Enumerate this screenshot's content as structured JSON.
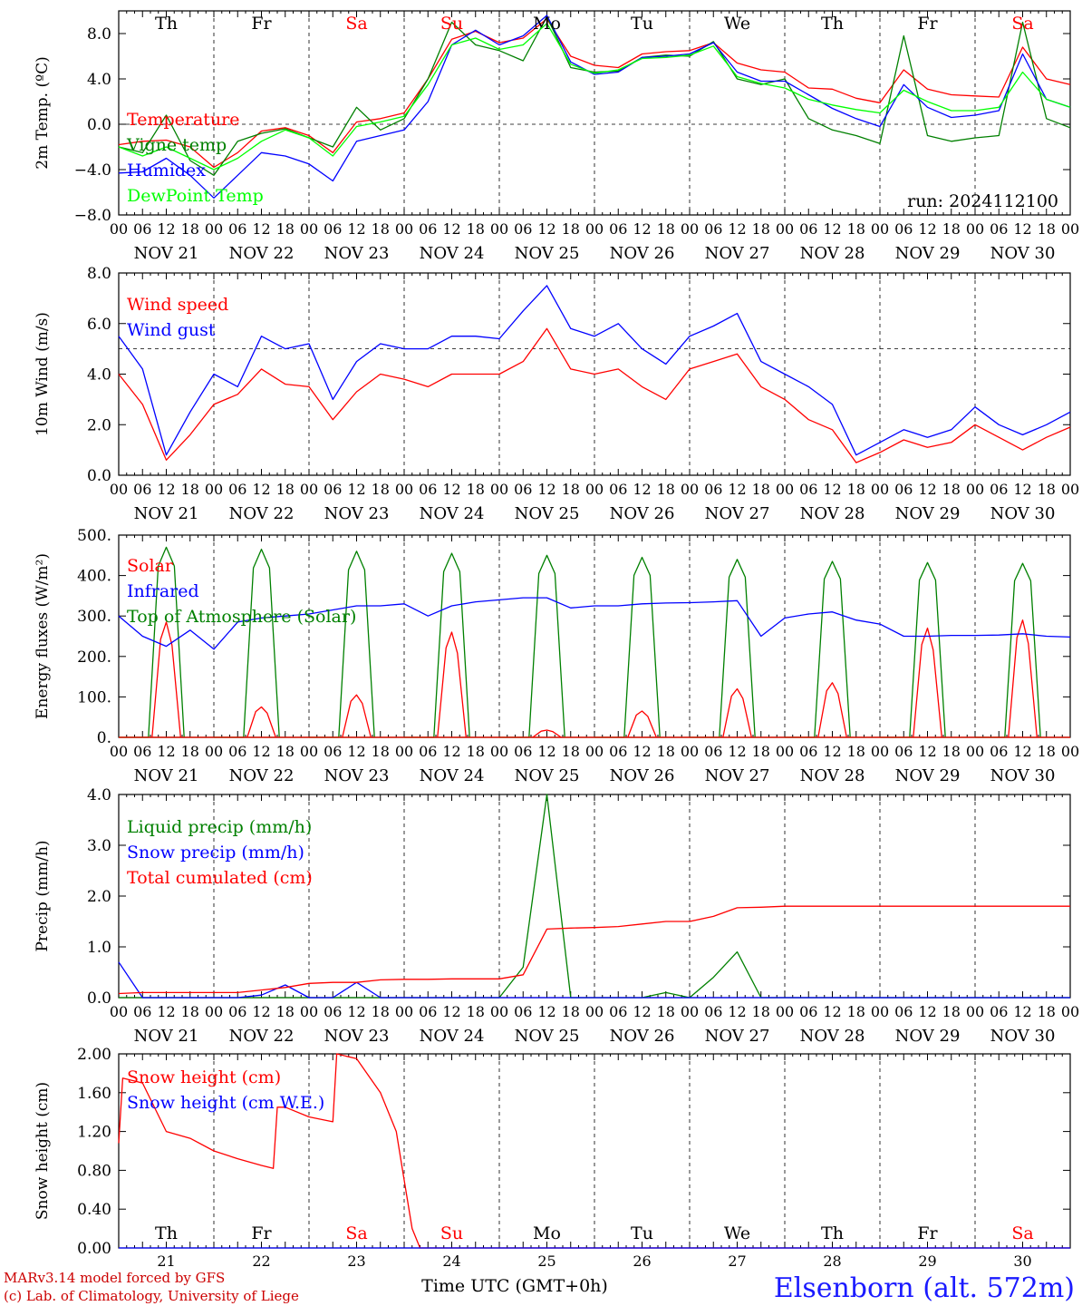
{
  "site_title": "Elsenborn (alt. 572m)",
  "run_label": "run: 2024112100",
  "x_axis_title": "Time UTC (GMT+0h)",
  "credit_lines": [
    "MARv3.14 model forced by GFS",
    "(c) Lab. of Climatology, University of Liege"
  ],
  "hour_ticks": [
    "00",
    "06",
    "12",
    "18"
  ],
  "date_labels": [
    "NOV 21",
    "NOV 22",
    "NOV 23",
    "NOV 24",
    "NOV 25",
    "NOV 26",
    "NOV 27",
    "NOV 28",
    "NOV 29",
    "NOV 30"
  ],
  "day_names": [
    "Th",
    "Fr",
    "Sa",
    "Su",
    "Mo",
    "Tu",
    "We",
    "Th",
    "Fr",
    "Sa"
  ],
  "day_numbers": [
    "21",
    "22",
    "23",
    "24",
    "25",
    "26",
    "27",
    "28",
    "29",
    "30"
  ],
  "weekend_color": "#ff0000",
  "weekend_indices": [
    2,
    3,
    9
  ],
  "chart_data": [
    {
      "type": "line",
      "ylabel": "2m Temp. (ºC)",
      "ylim": [
        -8,
        10
      ],
      "yticks": [
        "8.0",
        "4.0",
        "0.0",
        "−4.0",
        "−8.0"
      ],
      "ytick_values": [
        8,
        4,
        0,
        -4,
        -8
      ],
      "reference_line": 0,
      "x_hours": [
        0,
        6,
        12,
        18,
        24,
        30,
        36,
        42,
        48,
        54,
        60,
        66,
        72,
        78,
        84,
        90,
        96,
        102,
        108,
        114,
        120,
        126,
        132,
        138,
        144,
        150,
        156,
        162,
        168,
        174,
        180,
        186,
        192,
        198,
        204,
        210,
        216,
        222,
        228,
        234,
        240
      ],
      "series": [
        {
          "name": "Temperature",
          "color": "#ff0000",
          "values": [
            -1.8,
            -1.5,
            -1.4,
            -2.0,
            -3.8,
            -2.5,
            -0.6,
            -0.3,
            -1.0,
            -2.5,
            0.2,
            0.5,
            1.0,
            4.0,
            7.5,
            8.2,
            7.2,
            7.6,
            9.3,
            6.0,
            5.2,
            5.0,
            6.2,
            6.4,
            6.5,
            7.2,
            5.4,
            4.8,
            4.6,
            3.2,
            3.1,
            2.3,
            1.9,
            4.8,
            3.1,
            2.6,
            2.5,
            2.4,
            6.8,
            4.0,
            3.5
          ]
        },
        {
          "name": "Vigne temp",
          "color": "#008000",
          "values": [
            -2.0,
            -2.5,
            0.8,
            -3.2,
            -4.5,
            -1.5,
            -0.8,
            -0.4,
            -1.2,
            -2.0,
            1.5,
            -0.5,
            0.5,
            4.0,
            9.0,
            7.0,
            6.5,
            5.6,
            9.5,
            5.0,
            4.6,
            4.7,
            5.9,
            6.1,
            6.0,
            7.3,
            4.0,
            3.5,
            4.0,
            0.5,
            -0.5,
            -1.0,
            -1.7,
            7.8,
            -1.0,
            -1.5,
            -1.2,
            -1.0,
            9.0,
            0.5,
            -0.3
          ]
        },
        {
          "name": "Humidex",
          "color": "#0000ff",
          "values": [
            -4.3,
            -4.2,
            -3.0,
            -4.5,
            -6.5,
            -4.5,
            -2.5,
            -2.8,
            -3.5,
            -5.0,
            -1.5,
            -1.0,
            -0.5,
            2.0,
            7.0,
            8.3,
            7.0,
            7.8,
            9.6,
            5.5,
            4.4,
            4.6,
            5.9,
            6.0,
            6.2,
            7.2,
            4.6,
            3.8,
            3.8,
            2.6,
            1.4,
            0.5,
            -0.2,
            3.5,
            1.5,
            0.6,
            0.8,
            1.2,
            6.2,
            2.2,
            1.5
          ]
        },
        {
          "name": "DewPoint Temp",
          "color": "#00ff00",
          "values": [
            -2.0,
            -2.8,
            -2.0,
            -3.0,
            -4.0,
            -3.0,
            -1.5,
            -0.5,
            -1.2,
            -2.8,
            -0.2,
            0.2,
            0.7,
            3.5,
            7.0,
            7.6,
            6.6,
            7.0,
            8.9,
            5.3,
            4.5,
            4.8,
            5.8,
            5.9,
            6.1,
            6.9,
            4.2,
            3.6,
            3.2,
            2.2,
            1.7,
            1.3,
            1.0,
            3.0,
            2.0,
            1.2,
            1.2,
            1.5,
            4.6,
            2.2,
            1.5
          ]
        }
      ]
    },
    {
      "type": "line",
      "ylabel": "10m Wind (m/s)",
      "ylim": [
        0,
        8
      ],
      "yticks": [
        "8.0",
        "6.0",
        "4.0",
        "2.0",
        "0.0"
      ],
      "ytick_values": [
        8,
        6,
        4,
        2,
        0
      ],
      "reference_line": 5,
      "x_hours": [
        0,
        6,
        12,
        18,
        24,
        30,
        36,
        42,
        48,
        54,
        60,
        66,
        72,
        78,
        84,
        90,
        96,
        102,
        108,
        114,
        120,
        126,
        132,
        138,
        144,
        150,
        156,
        162,
        168,
        174,
        180,
        186,
        192,
        198,
        204,
        210,
        216,
        222,
        228,
        234,
        240
      ],
      "series": [
        {
          "name": "Wind speed",
          "color": "#ff0000",
          "values": [
            4.0,
            2.8,
            0.6,
            1.6,
            2.8,
            3.2,
            4.2,
            3.6,
            3.5,
            2.2,
            3.3,
            4.0,
            3.8,
            3.5,
            4.0,
            4.0,
            4.0,
            4.5,
            5.8,
            4.2,
            4.0,
            4.2,
            3.5,
            3.0,
            4.2,
            4.5,
            4.8,
            3.5,
            3.0,
            2.2,
            1.8,
            0.5,
            0.9,
            1.4,
            1.1,
            1.3,
            2.0,
            1.5,
            1.0,
            1.5,
            1.9
          ]
        },
        {
          "name": "Wind gust",
          "color": "#0000ff",
          "values": [
            5.5,
            4.2,
            0.8,
            2.5,
            4.0,
            3.5,
            5.5,
            5.0,
            5.2,
            3.0,
            4.5,
            5.2,
            5.0,
            5.0,
            5.5,
            5.5,
            5.4,
            6.5,
            7.5,
            5.8,
            5.5,
            6.0,
            5.0,
            4.4,
            5.5,
            5.9,
            6.4,
            4.5,
            4.0,
            3.5,
            2.8,
            0.8,
            1.3,
            1.8,
            1.5,
            1.8,
            2.7,
            2.0,
            1.6,
            2.0,
            2.5
          ]
        }
      ]
    },
    {
      "type": "line",
      "ylabel": "Energy fluxes (W/m²)",
      "ylim": [
        0,
        500
      ],
      "yticks": [
        "500.",
        "400.",
        "300.",
        "200.",
        "100.",
        "0."
      ],
      "ytick_values": [
        500,
        400,
        300,
        200,
        100,
        0
      ],
      "x_hours": [
        0,
        6,
        12,
        18,
        24,
        30,
        36,
        42,
        48,
        54,
        60,
        66,
        72,
        78,
        84,
        90,
        96,
        102,
        108,
        114,
        120,
        126,
        132,
        138,
        144,
        150,
        156,
        162,
        168,
        174,
        180,
        186,
        192,
        198,
        204,
        210,
        216,
        222,
        228,
        234,
        240
      ],
      "solar_days": {
        "noon_offset_hours": 12,
        "half_width_hours": 4.5,
        "solar_peak": [
          285,
          75,
          105,
          260,
          18,
          65,
          120,
          135,
          270,
          290
        ],
        "toa_peak": [
          470,
          465,
          460,
          455,
          450,
          445,
          440,
          435,
          432,
          430
        ]
      },
      "series": [
        {
          "name": "Solar",
          "color": "#ff0000",
          "values": []
        },
        {
          "name": "Infrared",
          "color": "#0000ff",
          "values": [
            300,
            250,
            225,
            265,
            218,
            285,
            295,
            300,
            305,
            315,
            325,
            325,
            330,
            300,
            325,
            335,
            340,
            345,
            345,
            320,
            325,
            325,
            330,
            332,
            333,
            335,
            338,
            250,
            295,
            305,
            310,
            290,
            280,
            250,
            250,
            252,
            252,
            253,
            256,
            250,
            248
          ]
        },
        {
          "name": "Top of Atmosphere (Solar)",
          "color": "#008000",
          "values": []
        }
      ]
    },
    {
      "type": "line",
      "ylabel": "Precip (mm/h)",
      "ylim": [
        0,
        4
      ],
      "yticks": [
        "4.0",
        "3.0",
        "2.0",
        "1.0",
        "0.0"
      ],
      "ytick_values": [
        4,
        3,
        2,
        1,
        0
      ],
      "x_hours": [
        0,
        6,
        12,
        18,
        24,
        30,
        36,
        42,
        48,
        54,
        60,
        66,
        72,
        78,
        84,
        90,
        96,
        102,
        108,
        114,
        120,
        126,
        132,
        138,
        144,
        150,
        156,
        162,
        168,
        174,
        180,
        186,
        192,
        198,
        204,
        210,
        216,
        222,
        228,
        234,
        240
      ],
      "series": [
        {
          "name": "Liquid precip (mm/h)",
          "color": "#008000",
          "values": [
            0,
            0,
            0,
            0,
            0,
            0,
            0,
            0,
            0,
            0,
            0,
            0,
            0,
            0,
            0,
            0,
            0,
            0.6,
            4.0,
            0,
            0,
            0,
            0,
            0.1,
            0,
            0.4,
            0.9,
            0,
            0,
            0,
            0,
            0,
            0,
            0,
            0,
            0,
            0,
            0,
            0,
            0,
            0
          ]
        },
        {
          "name": "Snow precip (mm/h)",
          "color": "#0000ff",
          "values": [
            0.7,
            0,
            0,
            0,
            0,
            0,
            0.05,
            0.25,
            0,
            0,
            0.3,
            0,
            0,
            0,
            0,
            0,
            0,
            0,
            0,
            0,
            0,
            0,
            0,
            0,
            0,
            0,
            0,
            0,
            0,
            0,
            0,
            0,
            0,
            0,
            0,
            0,
            0,
            0,
            0,
            0,
            0
          ]
        },
        {
          "name": "Total cumulated (cm)",
          "color": "#ff0000",
          "values": [
            0.08,
            0.1,
            0.1,
            0.1,
            0.1,
            0.1,
            0.15,
            0.2,
            0.28,
            0.3,
            0.3,
            0.35,
            0.36,
            0.36,
            0.37,
            0.37,
            0.37,
            0.45,
            1.35,
            1.37,
            1.38,
            1.4,
            1.45,
            1.5,
            1.5,
            1.6,
            1.77,
            1.78,
            1.8,
            1.8,
            1.8,
            1.8,
            1.8,
            1.8,
            1.8,
            1.8,
            1.8,
            1.8,
            1.8,
            1.8,
            1.8
          ]
        }
      ]
    },
    {
      "type": "line",
      "ylabel": "Snow height (cm)",
      "ylim": [
        0,
        2
      ],
      "yticks": [
        "2.00",
        "1.60",
        "1.20",
        "0.80",
        "0.40",
        "0.00"
      ],
      "ytick_values": [
        2,
        1.6,
        1.2,
        0.8,
        0.4,
        0
      ],
      "x_hours": [
        0,
        1,
        6,
        12,
        18,
        24,
        30,
        36,
        39,
        40,
        42,
        48,
        54,
        55,
        60,
        66,
        70,
        72,
        74,
        76,
        77,
        240
      ],
      "series": [
        {
          "name": "Snow height (cm)",
          "color": "#ff0000",
          "values": [
            1.08,
            1.75,
            1.7,
            1.2,
            1.13,
            1.0,
            0.92,
            0.85,
            0.82,
            1.45,
            1.45,
            1.35,
            1.3,
            2.0,
            1.95,
            1.6,
            1.2,
            0.7,
            0.2,
            0,
            0,
            0
          ]
        },
        {
          "name": "Snow height (cm W.E.)",
          "color": "#0000ff",
          "values": [
            0,
            0,
            0,
            0,
            0,
            0,
            0,
            0,
            0,
            0,
            0,
            0,
            0,
            0,
            0,
            0,
            0,
            0,
            0,
            0,
            0,
            0
          ]
        }
      ]
    }
  ]
}
